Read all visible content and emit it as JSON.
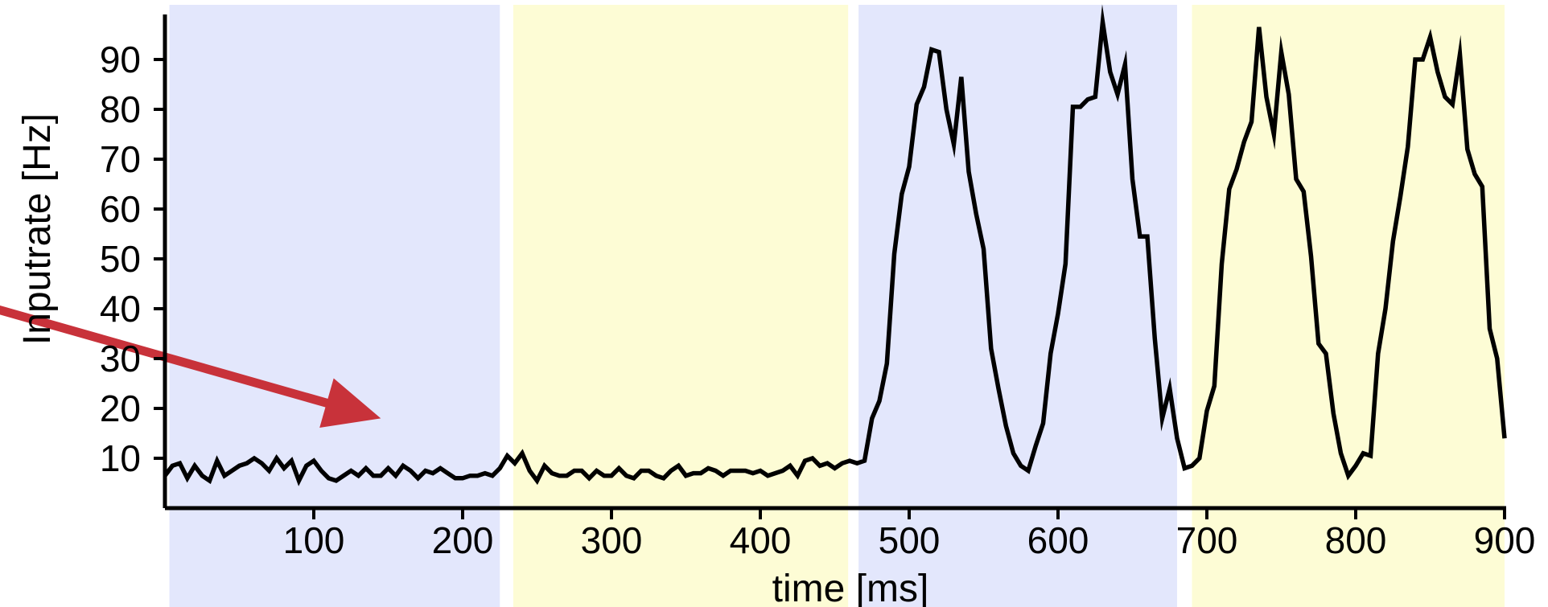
{
  "chart_data": {
    "type": "line",
    "xlabel": "time [ms]",
    "ylabel": "Inputrate [Hz]",
    "xlim": [
      0,
      900
    ],
    "ylim": [
      0,
      100
    ],
    "x_ticks": [
      100,
      200,
      300,
      400,
      500,
      600,
      700,
      800,
      900
    ],
    "y_ticks": [
      10,
      20,
      30,
      40,
      50,
      60,
      70,
      80,
      90
    ],
    "grid": false,
    "colors": {
      "line": "#000000",
      "band_blue": "#e3e7fc",
      "band_yellow": "#fdfcd5",
      "arrow": "#c8323a"
    },
    "background_bands": [
      {
        "start": 3,
        "end": 225,
        "color": "blue"
      },
      {
        "start": 234,
        "end": 459,
        "color": "yellow"
      },
      {
        "start": 466,
        "end": 680,
        "color": "blue"
      },
      {
        "start": 690,
        "end": 900,
        "color": "yellow"
      }
    ],
    "annotation": {
      "type": "arrow",
      "points_to": {
        "x": 145,
        "y": 18
      }
    },
    "series": [
      {
        "x": [
          0,
          5,
          10,
          15,
          20,
          25,
          30,
          35,
          40,
          45,
          50,
          55,
          60,
          65,
          70,
          75,
          80,
          85,
          90,
          95,
          100,
          105,
          110,
          115,
          120,
          125,
          130,
          135,
          140,
          145,
          150,
          155,
          160,
          165,
          170,
          175,
          180,
          185,
          190,
          195,
          200,
          205,
          210,
          215,
          220,
          225,
          230,
          235,
          240,
          245,
          250,
          255,
          260,
          265,
          270,
          275,
          280,
          285,
          290,
          295,
          300,
          305,
          310,
          315,
          320,
          325,
          330,
          335,
          340,
          345,
          350,
          355,
          360,
          365,
          370,
          375,
          380,
          385,
          390,
          395,
          400,
          405,
          410,
          415,
          420,
          425,
          430,
          435,
          440,
          445,
          450,
          455,
          460,
          465,
          470,
          475,
          480,
          485,
          490,
          495,
          500,
          505,
          510,
          515,
          520,
          525,
          530,
          535,
          540,
          545,
          550,
          555,
          560,
          565,
          570,
          575,
          580,
          585,
          590,
          595,
          600,
          605,
          610,
          615,
          620,
          625,
          630,
          635,
          640,
          645,
          650,
          655,
          660,
          665,
          670,
          675,
          680,
          685,
          690,
          695,
          700,
          705,
          710,
          715,
          720,
          725,
          730,
          735,
          740,
          745,
          750,
          755,
          760,
          765,
          770,
          775,
          780,
          785,
          790,
          795,
          800,
          805,
          810,
          815,
          820,
          825,
          830,
          835,
          840,
          845,
          850,
          855,
          860,
          865,
          870,
          875,
          880,
          885,
          890,
          895,
          900
        ],
        "values": [
          6.5,
          8.5,
          9.0,
          6.0,
          8.5,
          6.5,
          5.5,
          9.5,
          6.5,
          7.5,
          8.5,
          9.0,
          10.0,
          9.0,
          7.5,
          10.0,
          8.0,
          9.5,
          5.5,
          8.5,
          9.5,
          7.5,
          6.0,
          5.5,
          6.5,
          7.5,
          6.5,
          8.0,
          6.5,
          6.5,
          8.0,
          6.5,
          8.5,
          7.5,
          6.0,
          7.5,
          7.0,
          8.0,
          7.0,
          6.0,
          6.0,
          6.5,
          6.5,
          7.0,
          6.5,
          8.0,
          10.5,
          9.0,
          11.0,
          7.5,
          5.5,
          8.5,
          7.0,
          6.5,
          6.5,
          7.5,
          7.5,
          6.0,
          7.5,
          6.5,
          6.5,
          8.0,
          6.5,
          6.0,
          7.5,
          7.5,
          6.5,
          6.0,
          7.5,
          8.5,
          6.5,
          7.0,
          7.0,
          8.0,
          7.5,
          6.5,
          7.5,
          7.5,
          7.5,
          7.0,
          7.5,
          6.5,
          7.0,
          7.5,
          8.5,
          6.5,
          9.5,
          10.0,
          8.5,
          9.0,
          8.0,
          9.0,
          9.5,
          9.0,
          9.5,
          18.0,
          21.5,
          29.0,
          51.0,
          63.0,
          68.5,
          81.0,
          84.5,
          92.0,
          91.5,
          80.0,
          73.0,
          86.5,
          67.5,
          59.0,
          52.0,
          32.0,
          24.0,
          16.5,
          11.0,
          8.5,
          7.5,
          12.5,
          17.0,
          31.0,
          39.0,
          49.0,
          80.5,
          80.5,
          82.0,
          82.5,
          97.5,
          87.5,
          83.0,
          89.0,
          66.0,
          54.5,
          54.5,
          34.0,
          18.0,
          24.0,
          14.0,
          8.0,
          8.5,
          10.0,
          19.5,
          24.5,
          49.0,
          64.0,
          68.0,
          73.5,
          77.5,
          96.5,
          82.5,
          75.0,
          91.5,
          83.0,
          66.0,
          63.5,
          50.5,
          33.0,
          31.0,
          19.0,
          11.0,
          6.5,
          8.5,
          11.0,
          10.5,
          31.0,
          40.0,
          53.5,
          62.5,
          72.5,
          90.0,
          90.0,
          94.5,
          87.5,
          82.5,
          81.0,
          91.0,
          72.0,
          67.0,
          64.5,
          36.0,
          30.0,
          14.0
        ]
      }
    ]
  }
}
